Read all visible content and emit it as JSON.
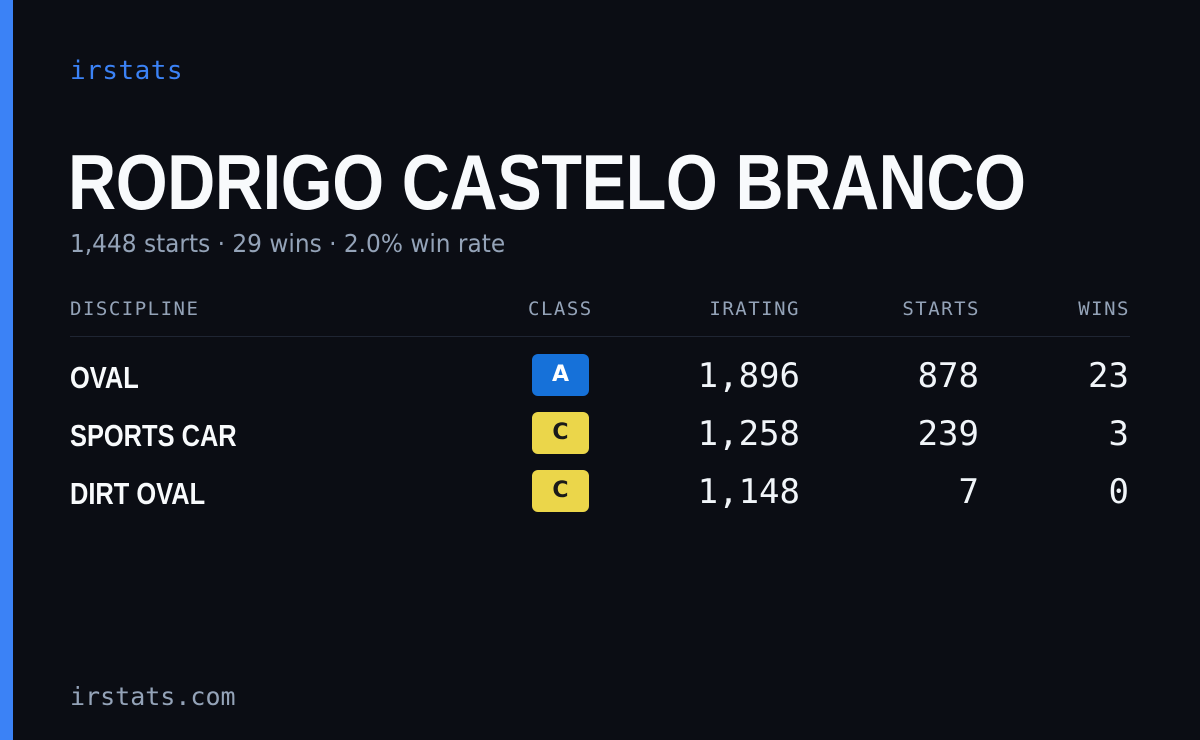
{
  "brand": "irstats",
  "driver": {
    "name": "RODRIGO CASTELO BRANCO",
    "summary": "1,448 starts · 29 wins · 2.0% win rate"
  },
  "table": {
    "headers": {
      "discipline": "DISCIPLINE",
      "class": "CLASS",
      "irating": "IRATING",
      "starts": "STARTS",
      "wins": "WINS"
    },
    "rows": [
      {
        "discipline": "OVAL",
        "class": "A",
        "class_color": "#1671d9",
        "class_text_color": "#ffffff",
        "irating": "1,896",
        "starts": "878",
        "wins": "23"
      },
      {
        "discipline": "SPORTS CAR",
        "class": "C",
        "class_color": "#ebd64a",
        "class_text_color": "#1a1a1a",
        "irating": "1,258",
        "starts": "239",
        "wins": "3"
      },
      {
        "discipline": "DIRT OVAL",
        "class": "C",
        "class_color": "#ebd64a",
        "class_text_color": "#1a1a1a",
        "irating": "1,148",
        "starts": "7",
        "wins": "0"
      }
    ]
  },
  "footer": "irstats.com",
  "colors": {
    "background": "#0b0d14",
    "accent": "#3b82f6",
    "muted_text": "#94a3b8",
    "primary_text": "#f8fafc"
  }
}
